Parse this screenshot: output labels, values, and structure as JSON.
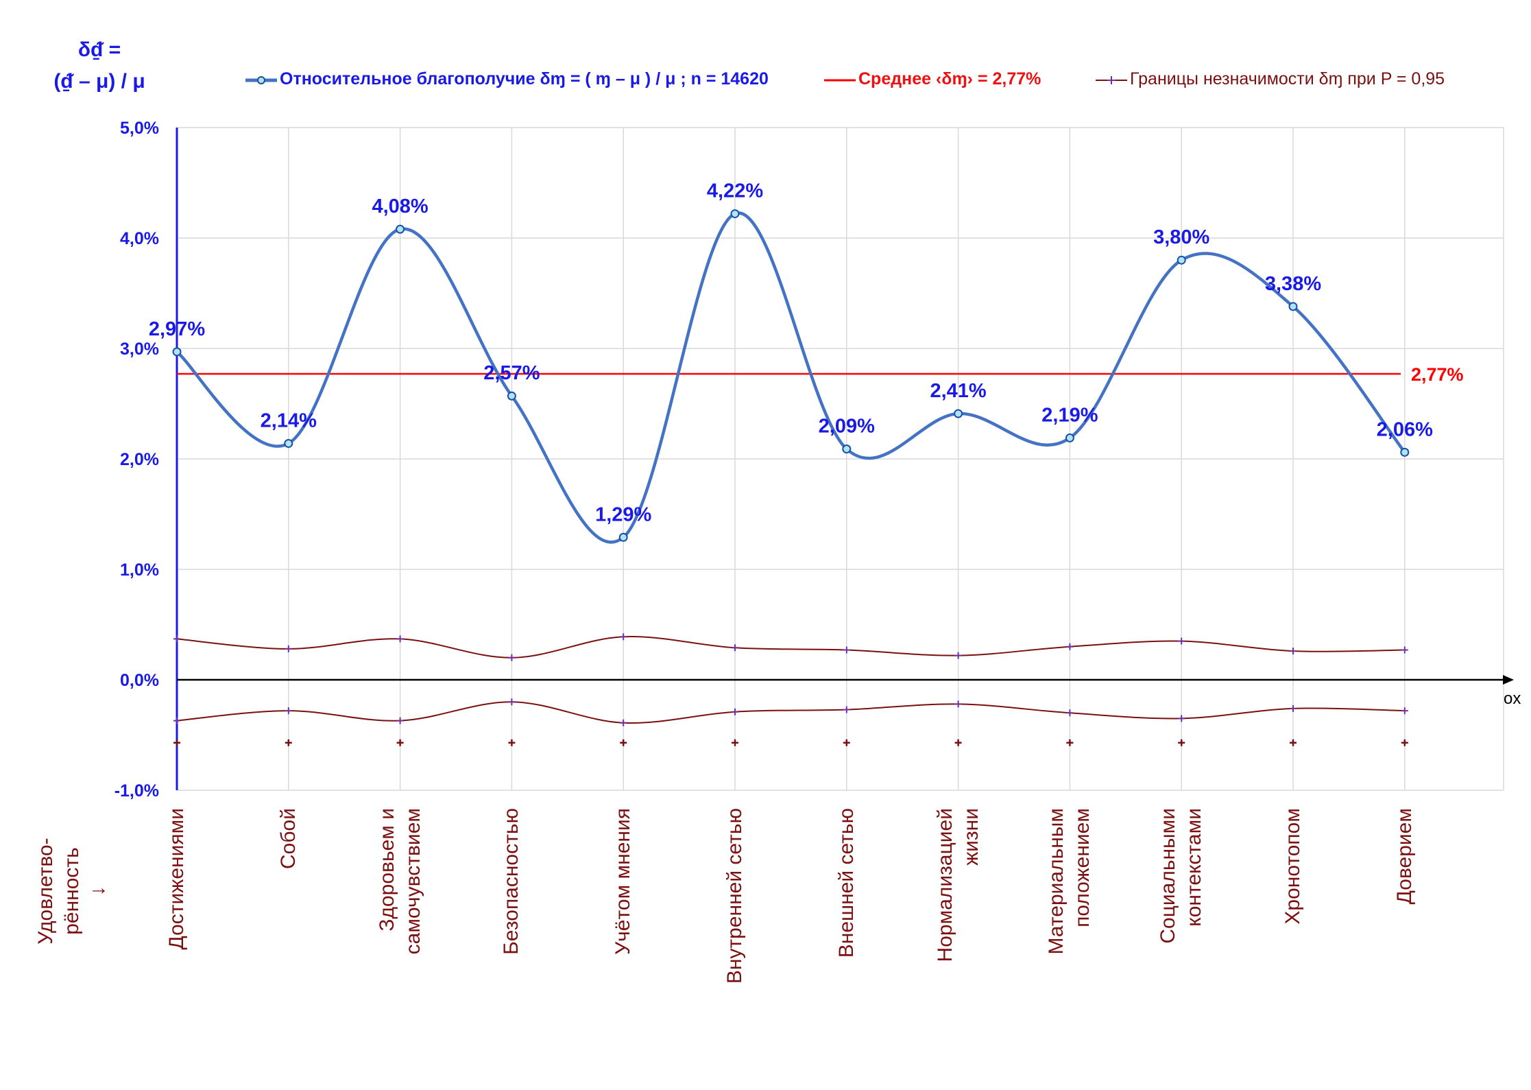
{
  "y_axis_title": {
    "line1": "δᵭ̱ =",
    "line2": "(ᵭ̱ – μ) / μ"
  },
  "legend": {
    "series": "Относительное благополучие δɱ = ( ɱ – μ ) / μ ; n = 14620",
    "mean": "Среднее ‹δɱ› = 2,77%",
    "bounds": "Границы незначимости δɱ при P = 0,95"
  },
  "colors": {
    "series": "#4472c4",
    "label": "#1a1ae6",
    "mean": "#ff0000",
    "bounds": "#7b1010",
    "grid": "#d9d9d9"
  },
  "x_axis_label": "ox",
  "side_label": "Удовлетво-\nрённость\n↓",
  "chart_data": {
    "type": "line",
    "categories": [
      "Достижениями",
      "Собой",
      "Здоровьем и\nсамочувствием",
      "Безопасностью",
      "Учётом мнения",
      "Внутренней сетью",
      "Внешней сетью",
      "Нормализацией\nжизни",
      "Материальным\nположением",
      "Социальными\nконтекстами",
      "Хронотопом",
      "Доверием"
    ],
    "series": [
      {
        "name": "Относительное благополучие",
        "values": [
          2.97,
          2.14,
          4.08,
          2.57,
          1.29,
          4.22,
          2.09,
          2.41,
          2.19,
          3.8,
          3.38,
          2.06
        ],
        "labels": [
          "2,97%",
          "2,14%",
          "4,08%",
          "2,57%",
          "1,29%",
          "4,22%",
          "2,09%",
          "2,41%",
          "2,19%",
          "3,80%",
          "3,38%",
          "2,06%"
        ]
      },
      {
        "name": "Среднее",
        "value": 2.77,
        "label": "2,77%"
      },
      {
        "name": "Границы незначимости",
        "upper": [
          0.37,
          0.28,
          0.37,
          0.2,
          0.39,
          0.29,
          0.27,
          0.22,
          0.3,
          0.35,
          0.26,
          0.27
        ],
        "lower": [
          -0.37,
          -0.28,
          -0.37,
          -0.2,
          -0.39,
          -0.29,
          -0.27,
          -0.22,
          -0.3,
          -0.35,
          -0.26,
          -0.28
        ],
        "extra_marker": -0.57
      }
    ],
    "ylim": [
      -1.0,
      5.0
    ],
    "yticks": [
      -1.0,
      0.0,
      1.0,
      2.0,
      3.0,
      4.0,
      5.0
    ],
    "ytick_labels": [
      "-1,0%",
      "0,0%",
      "1,0%",
      "2,0%",
      "3,0%",
      "4,0%",
      "5,0%"
    ],
    "grid": true,
    "legend_position": "top"
  }
}
